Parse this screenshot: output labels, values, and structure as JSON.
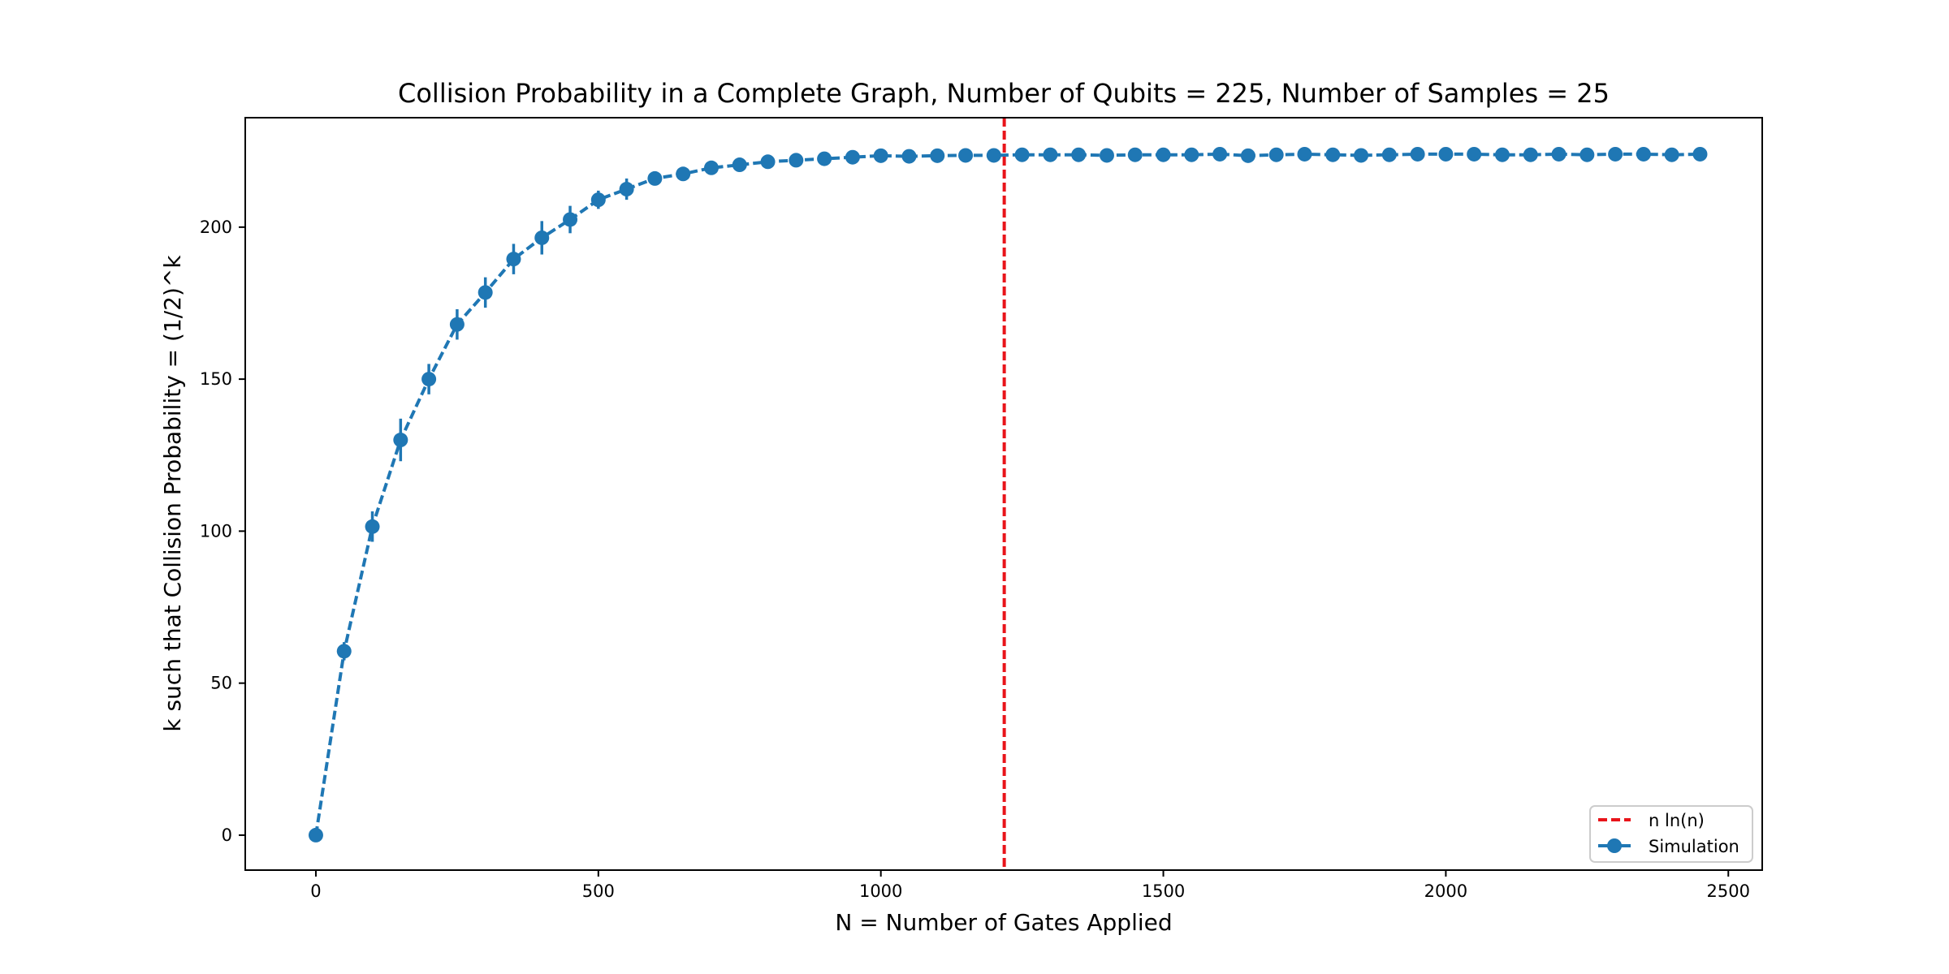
{
  "chart_data": {
    "type": "line",
    "title": "Collision Probability in a Complete Graph, Number of Qubits = 225, Number of Samples = 25",
    "xlabel": "N = Number of Gates Applied",
    "ylabel": "k such that Collision Probability = (1/2)^k",
    "xlim": [
      -125,
      2560
    ],
    "ylim": [
      -11.5,
      236
    ],
    "xticks": [
      0,
      500,
      1000,
      1500,
      2000,
      2500
    ],
    "yticks": [
      0,
      50,
      100,
      150,
      200
    ],
    "legend_position": "lower-right",
    "legend": [
      "n ln(n)",
      "Simulation"
    ],
    "vline": {
      "name": "n ln(n)",
      "x": 1218.4,
      "color": "#e8141a"
    },
    "series": [
      {
        "name": "Simulation",
        "color": "#1f77b4",
        "x": [
          0,
          50,
          100,
          150,
          200,
          250,
          300,
          350,
          400,
          450,
          500,
          550,
          600,
          650,
          700,
          750,
          800,
          850,
          900,
          950,
          1000,
          1050,
          1100,
          1150,
          1200,
          1250,
          1300,
          1350,
          1400,
          1450,
          1500,
          1550,
          1600,
          1650,
          1700,
          1750,
          1800,
          1850,
          1900,
          1950,
          2000,
          2050,
          2100,
          2150,
          2200,
          2250,
          2300,
          2350,
          2400,
          2450
        ],
        "y": [
          0,
          60.5,
          101.5,
          130,
          150,
          168,
          178.5,
          189.5,
          196.5,
          202.5,
          209,
          212.5,
          216,
          217.5,
          219.5,
          220.5,
          221.5,
          222,
          222.5,
          223,
          223.5,
          223.3,
          223.5,
          223.6,
          223.6,
          223.8,
          223.8,
          223.8,
          223.6,
          223.8,
          223.8,
          223.8,
          224,
          223.5,
          223.8,
          224,
          223.8,
          223.6,
          223.8,
          224,
          224,
          224,
          223.8,
          223.8,
          224,
          223.8,
          224,
          224,
          223.8,
          224
        ],
        "err": [
          1,
          3,
          5,
          7,
          5,
          5,
          5,
          5,
          5.5,
          4.5,
          3,
          3.5,
          2,
          1.5,
          1,
          1,
          1,
          1,
          1,
          0.8,
          0.8,
          0.8,
          0.8,
          0.8,
          0.8,
          0.8,
          0.8,
          0.8,
          0.8,
          0.8,
          0.8,
          0.8,
          0.8,
          0.8,
          0.8,
          0.8,
          0.8,
          0.8,
          0.8,
          0.8,
          0.8,
          0.8,
          0.8,
          0.8,
          0.8,
          0.8,
          0.8,
          0.8,
          0.8,
          0.8
        ]
      }
    ]
  }
}
